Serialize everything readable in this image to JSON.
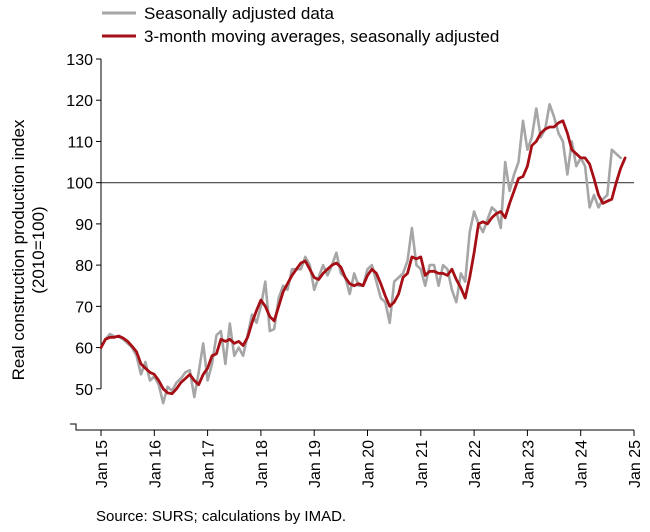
{
  "chart_data": {
    "type": "line",
    "ylabel_line1": "Real construction production index",
    "ylabel_line2": "(2010=100)",
    "ylim": [
      40,
      130
    ],
    "yticks": [
      "50",
      "60",
      "70",
      "80",
      "90",
      "100",
      "110",
      "120",
      "130"
    ],
    "y_tick_values": [
      50,
      60,
      70,
      80,
      90,
      100,
      110,
      120,
      130
    ],
    "x_range_months": [
      0,
      120
    ],
    "xtick_labels": [
      "Jan 15",
      "Jan 16",
      "Jan 17",
      "Jan 18",
      "Jan 19",
      "Jan 20",
      "Jan 21",
      "Jan 22",
      "Jan 23",
      "Jan 24",
      "Jan 25"
    ],
    "reference_line": 100,
    "legend_placement": "top-left",
    "series": [
      {
        "name": "Seasonally adjusted data",
        "color": "#a6a6a6",
        "values": [
          60,
          62,
          63.3,
          62.7,
          62.6,
          62,
          61,
          60,
          58,
          53.5,
          56.5,
          52,
          53,
          51,
          46.5,
          50.5,
          49.5,
          51.5,
          52.5,
          54,
          54.5,
          48,
          54,
          61,
          52,
          56,
          63,
          64,
          56,
          65.8,
          58,
          60,
          58,
          63,
          68,
          66,
          70,
          76,
          64,
          64.5,
          72,
          75,
          74,
          79,
          79,
          79,
          82,
          80,
          74,
          77,
          80,
          77.5,
          80,
          83,
          78,
          77,
          73,
          78,
          75,
          75,
          79,
          80,
          76,
          72,
          71,
          66,
          76,
          77,
          78,
          81,
          89,
          80,
          79,
          75,
          80,
          80,
          75,
          80,
          79,
          74,
          71,
          78,
          76,
          88,
          93,
          90,
          88,
          91,
          94,
          93,
          89,
          105,
          98,
          102,
          105,
          115,
          108,
          111,
          118,
          111,
          113,
          119,
          116,
          112,
          110,
          102,
          110,
          104,
          106,
          104,
          94,
          97,
          94,
          96,
          97,
          108,
          107,
          106
        ]
      },
      {
        "name": "3-month moving averages, seasonally adjusted",
        "color": "#a50f15",
        "values": [
          60,
          62,
          62.5,
          62.5,
          62.8,
          62.3,
          61.5,
          60.3,
          59,
          56,
          55,
          54,
          53.5,
          52,
          50,
          49,
          48.8,
          50,
          51.5,
          52.5,
          53.5,
          52,
          51,
          53.5,
          55,
          58,
          58.5,
          62,
          61.5,
          62,
          61,
          61.5,
          60.5,
          62.5,
          66,
          69,
          71.5,
          70,
          67.5,
          66.5,
          70,
          73.5,
          75.5,
          77.5,
          79,
          80.5,
          81,
          79,
          77,
          76.5,
          78,
          79,
          80,
          80.5,
          79.5,
          77,
          75.5,
          75,
          75.5,
          75,
          77.5,
          79,
          78,
          75.5,
          72.5,
          70,
          71,
          73,
          77,
          78,
          82,
          81.5,
          82,
          77.5,
          78.5,
          78.5,
          78,
          78,
          77.5,
          79,
          76.5,
          74.5,
          72,
          77,
          83,
          90,
          90.5,
          90,
          91.5,
          92.5,
          93,
          91.5,
          95,
          98,
          101,
          101.5,
          104,
          109,
          110,
          112,
          113,
          113.5,
          113.5,
          114.5,
          115,
          112,
          108,
          107,
          106,
          106,
          104.5,
          101,
          97,
          95,
          95.5,
          96,
          100,
          103.5,
          106
        ]
      }
    ]
  },
  "source": "Source: SURS; calculations by IMAD."
}
